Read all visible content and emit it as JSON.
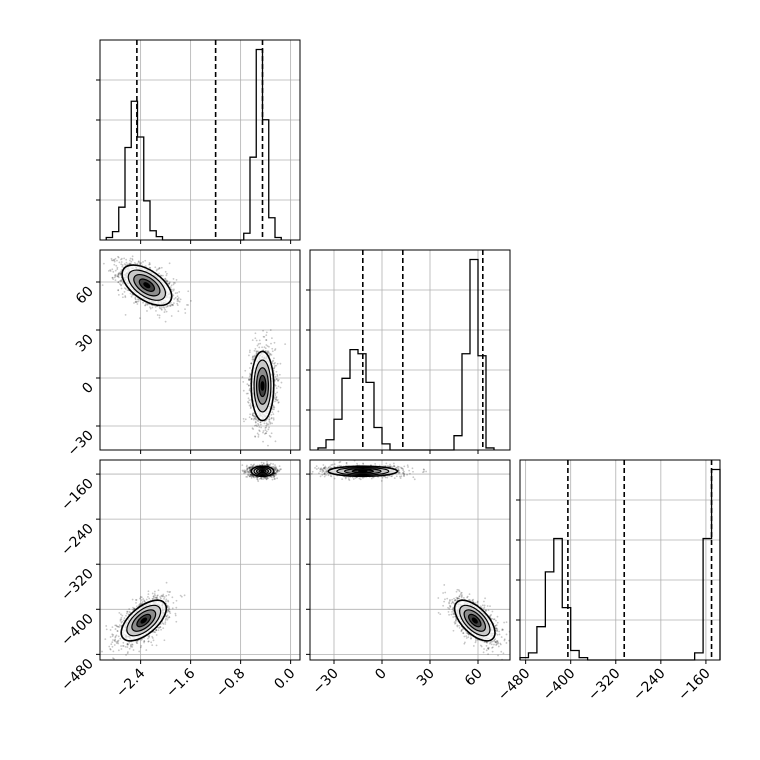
{
  "chart_data": {
    "type": "corner",
    "variables": 3,
    "grid": true,
    "axes": {
      "v0": {
        "range": [
          -3.05,
          0.15
        ],
        "ticks": [
          -2.4,
          -1.6,
          -0.8,
          0.0
        ],
        "tick_labels": [
          "−2.4",
          "−1.6",
          "−0.8",
          "0.0"
        ]
      },
      "v1": {
        "range": [
          -45,
          80
        ],
        "ticks": [
          -30,
          0,
          30,
          60
        ],
        "tick_labels": [
          "−30",
          "0",
          "30",
          "60"
        ]
      },
      "v2": {
        "range": [
          -490,
          -135
        ],
        "ticks": [
          -480,
          -400,
          -320,
          -240,
          -160
        ],
        "tick_labels": [
          "−480",
          "−400",
          "−320",
          "−240",
          "−160"
        ]
      }
    },
    "histograms": [
      {
        "variable": "v0",
        "bins": [
          {
            "x0": -2.95,
            "x1": -2.85,
            "count": 0.6
          },
          {
            "x0": -2.85,
            "x1": -2.75,
            "count": 2.0
          },
          {
            "x0": -2.75,
            "x1": -2.65,
            "count": 7.8
          },
          {
            "x0": -2.65,
            "x1": -2.55,
            "count": 22.0
          },
          {
            "x0": -2.55,
            "x1": -2.45,
            "count": 33.0
          },
          {
            "x0": -2.45,
            "x1": -2.35,
            "count": 24.5
          },
          {
            "x0": -2.35,
            "x1": -2.25,
            "count": 9.3
          },
          {
            "x0": -2.25,
            "x1": -2.15,
            "count": 2.2
          },
          {
            "x0": -2.15,
            "x1": -2.05,
            "count": 0.8
          },
          {
            "x0": -2.05,
            "x1": -0.75,
            "count": 0.0
          },
          {
            "x0": -0.75,
            "x1": -0.65,
            "count": 1.6
          },
          {
            "x0": -0.65,
            "x1": -0.55,
            "count": 19.7
          },
          {
            "x0": -0.55,
            "x1": -0.45,
            "count": 45.3
          },
          {
            "x0": -0.45,
            "x1": -0.35,
            "count": 28.6
          },
          {
            "x0": -0.35,
            "x1": -0.25,
            "count": 5.3
          },
          {
            "x0": -0.25,
            "x1": -0.15,
            "count": 0.6
          }
        ],
        "quantiles": [
          -2.46,
          -1.2,
          -0.45
        ]
      },
      {
        "variable": "v1",
        "bins": [
          {
            "x0": -40,
            "x1": -35,
            "count": 0.5
          },
          {
            "x0": -35,
            "x1": -30,
            "count": 2.5
          },
          {
            "x0": -30,
            "x1": -25,
            "count": 7.5
          },
          {
            "x0": -25,
            "x1": -20,
            "count": 17.5
          },
          {
            "x0": -20,
            "x1": -15,
            "count": 24.5
          },
          {
            "x0": -15,
            "x1": -10,
            "count": 23.5
          },
          {
            "x0": -10,
            "x1": -5,
            "count": 16.5
          },
          {
            "x0": -5,
            "x1": 0,
            "count": 5.5
          },
          {
            "x0": 0,
            "x1": 5,
            "count": 1.5
          },
          {
            "x0": 5,
            "x1": 45,
            "count": 0.0
          },
          {
            "x0": 45,
            "x1": 50,
            "count": 3.5
          },
          {
            "x0": 50,
            "x1": 55,
            "count": 23.5
          },
          {
            "x0": 55,
            "x1": 60,
            "count": 46.5
          },
          {
            "x0": 60,
            "x1": 65,
            "count": 23.0
          },
          {
            "x0": 65,
            "x1": 70,
            "count": 0.5
          }
        ],
        "quantiles": [
          -12,
          13,
          63
        ]
      },
      {
        "variable": "v2",
        "bins": [
          {
            "x0": -490,
            "x1": -475,
            "count": 0.5
          },
          {
            "x0": -475,
            "x1": -460,
            "count": 1.5
          },
          {
            "x0": -460,
            "x1": -445,
            "count": 7.0
          },
          {
            "x0": -445,
            "x1": -430,
            "count": 18.5
          },
          {
            "x0": -430,
            "x1": -415,
            "count": 25.5
          },
          {
            "x0": -415,
            "x1": -400,
            "count": 11.0
          },
          {
            "x0": -400,
            "x1": -385,
            "count": 2.0
          },
          {
            "x0": -385,
            "x1": -370,
            "count": 0.5
          },
          {
            "x0": -370,
            "x1": -180,
            "count": 0.0
          },
          {
            "x0": -180,
            "x1": -165,
            "count": 1.5
          },
          {
            "x0": -165,
            "x1": -150,
            "count": 25.5
          },
          {
            "x0": -150,
            "x1": -135,
            "count": 40.0
          }
        ],
        "quantiles": [
          -405,
          -305,
          -150
        ]
      }
    ],
    "scatter_panels": [
      {
        "x": "v0",
        "y": "v1",
        "clusters": [
          {
            "center": [
              -2.3,
              58
            ],
            "spread": [
              0.22,
              7.0
            ],
            "correlation": -0.55,
            "n": 1400
          },
          {
            "center": [
              -0.45,
              -5
            ],
            "spread": [
              0.1,
              12.0
            ],
            "correlation": 0.0,
            "n": 1400
          }
        ]
      },
      {
        "x": "v0",
        "y": "v2",
        "clusters": [
          {
            "center": [
              -2.35,
              -420
            ],
            "spread": [
              0.2,
              20.0
            ],
            "correlation": 0.6,
            "n": 1300
          },
          {
            "center": [
              -0.45,
              -155
            ],
            "spread": [
              0.1,
              5.0
            ],
            "correlation": 0.0,
            "n": 1300
          }
        ]
      },
      {
        "x": "v1",
        "y": "v2",
        "clusters": [
          {
            "center": [
              -12,
              -155
            ],
            "spread": [
              12.0,
              5.0
            ],
            "correlation": 0.0,
            "n": 1300
          },
          {
            "center": [
              58,
              -420
            ],
            "spread": [
              7.0,
              20.0
            ],
            "correlation": -0.6,
            "n": 1300
          }
        ]
      }
    ],
    "style": {
      "hist_color": "#000000",
      "quantile_line": "dashed",
      "grid_color": "#b0b0b0",
      "contour_fill": [
        "#ffffff",
        "#c8c8c8",
        "#8c8c8c",
        "#404040",
        "#000000"
      ]
    }
  }
}
